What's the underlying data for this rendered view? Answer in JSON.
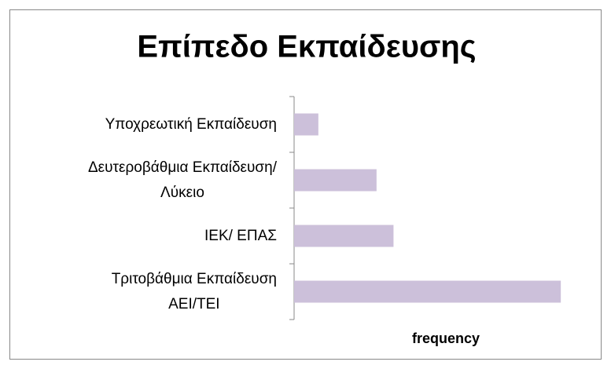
{
  "chart_data": {
    "type": "barh",
    "title": "Επίπεδο Εκπαίδευσης",
    "categories": [
      "Υποχρεωτική Εκπαίδευση",
      "Δευτεροβάθμια Εκπαίδευση/\nΛύκειο",
      "ΙΕΚ/ ΕΠΑΣ",
      "Τριτοβάθμια Εκπαίδευση\nΑΕΙ/ΤΕΙ"
    ],
    "values": [
      10,
      34,
      41,
      110
    ],
    "color": "#ccc0da",
    "xlim": [
      0,
      120
    ],
    "xlabel": "frequency"
  }
}
